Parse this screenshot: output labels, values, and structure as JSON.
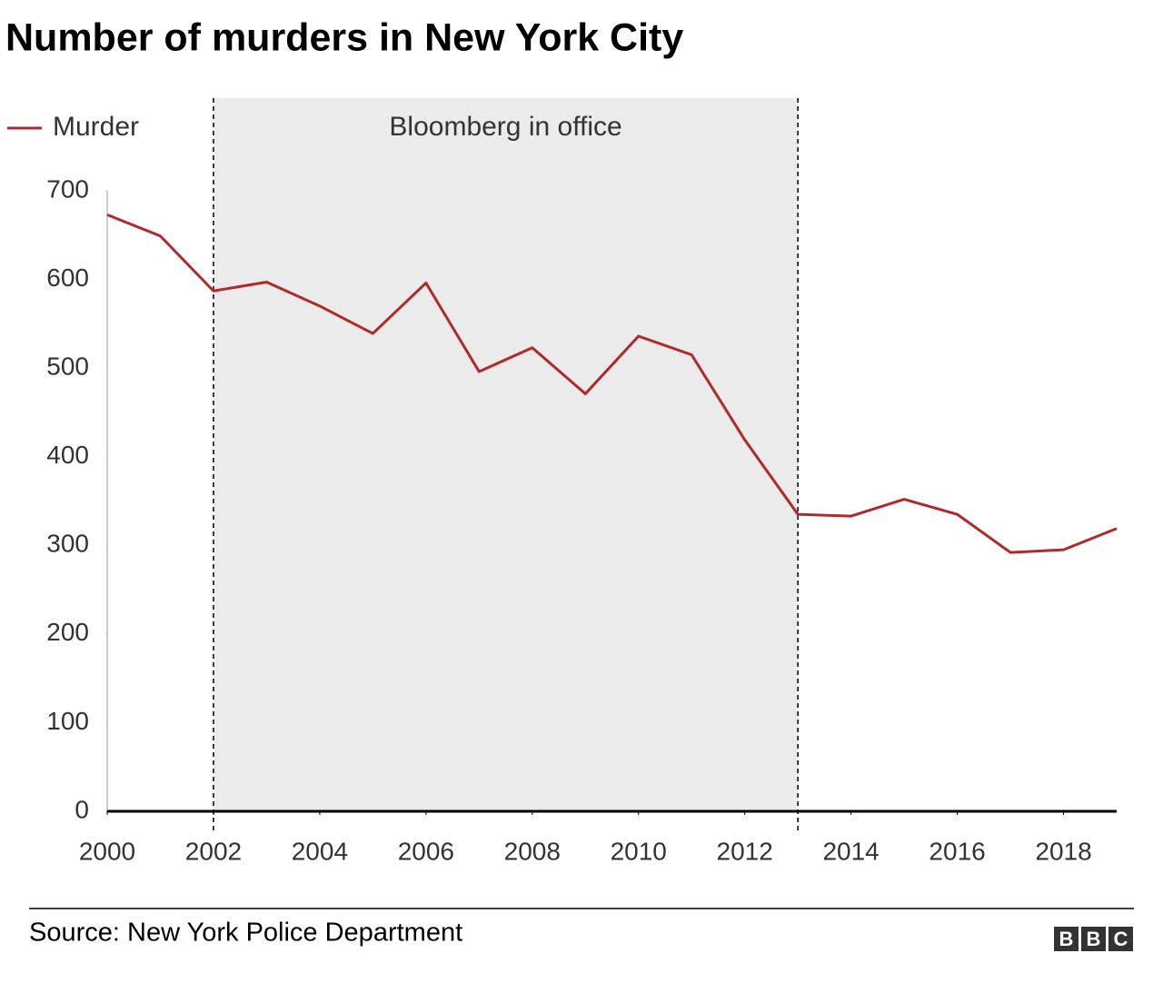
{
  "chart_data": {
    "type": "line",
    "title": "Number of murders in New York City",
    "x": [
      2000,
      2001,
      2002,
      2003,
      2004,
      2005,
      2006,
      2007,
      2008,
      2009,
      2010,
      2011,
      2012,
      2013,
      2014,
      2015,
      2016,
      2017,
      2018,
      2019
    ],
    "series": [
      {
        "name": "Murder",
        "color": "#b02a2a",
        "values": [
          673,
          649,
          587,
          597,
          570,
          539,
          596,
          496,
          523,
          471,
          536,
          515,
          419,
          335,
          333,
          352,
          335,
          292,
          295,
          319
        ]
      }
    ],
    "xlim": [
      2000,
      2019
    ],
    "xticks": [
      2000,
      2002,
      2004,
      2006,
      2008,
      2010,
      2012,
      2014,
      2016,
      2018
    ],
    "ylim": [
      0,
      700
    ],
    "yticks": [
      0,
      100,
      200,
      300,
      400,
      500,
      600,
      700
    ],
    "shaded_period": {
      "label": "Bloomberg in office",
      "start": 2002,
      "end": 2013
    },
    "legend": "top-left",
    "source": "Source: New York Police Department",
    "logo": [
      "B",
      "B",
      "C"
    ]
  }
}
